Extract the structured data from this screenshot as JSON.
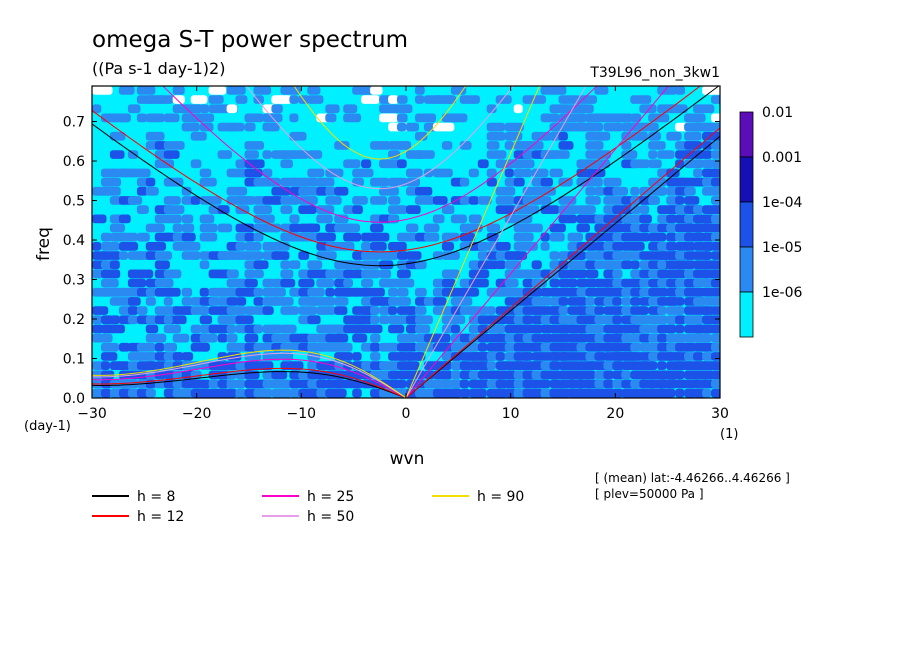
{
  "chart_data": {
    "type": "heatmap",
    "title": "omega S-T power spectrum",
    "subtitle": "((Pa s-1 day-1)2)",
    "run_label": "T39L96_non_3kw1",
    "xlabel": "wvn",
    "ylabel": "freq",
    "x_unit": "(1)",
    "y_unit": "(day-1)",
    "xlim": [
      -30,
      30
    ],
    "ylim": [
      0,
      0.79
    ],
    "xticks": [
      -30,
      -20,
      -10,
      0,
      10,
      20,
      30
    ],
    "yticks": [
      0.0,
      0.1,
      0.2,
      0.3,
      0.4,
      0.5,
      0.6,
      0.7
    ],
    "colorbar": {
      "levels": [
        "0.01",
        "0.001",
        "1e-04",
        "1e-05",
        "1e-06"
      ],
      "colors": [
        "#5a0db8",
        "#1410b4",
        "#1d52e8",
        "#2a8af2",
        "#00f0ff"
      ]
    },
    "field_colors": {
      "white": "#ffffff",
      "cyan": "#00f0ff",
      "light_blue": "#2a8af2",
      "mid_blue": "#1d52e8"
    },
    "legend": [
      {
        "label": "h =  8",
        "color": "#000000"
      },
      {
        "label": "h = 12",
        "color": "#ff0000"
      },
      {
        "label": "h = 25",
        "color": "#ff00c8"
      },
      {
        "label": "h = 50",
        "color": "#e3a0e8"
      },
      {
        "label": "h = 90",
        "color": "#f0e000"
      }
    ],
    "annotation_lines": [
      "[ (mean) lat:-4.46266..4.46266 ]",
      "[ plev=50000 Pa ]"
    ],
    "dispersion_curves": [
      {
        "h": 8,
        "color": "#000000",
        "ig_min_freq": 0.335,
        "kelvin_slope": 0.0221,
        "mrg_peak": 0.058
      },
      {
        "h": 12,
        "color": "#ff0000",
        "ig_min_freq": 0.37,
        "kelvin_slope": 0.0228,
        "mrg_peak": 0.065
      },
      {
        "h": 25,
        "color": "#ff00c8",
        "ig_min_freq": 0.445,
        "kelvin_slope": 0.0315,
        "mrg_peak": 0.085
      },
      {
        "h": 50,
        "color": "#e3a0e8",
        "ig_min_freq": 0.53,
        "kelvin_slope": 0.046,
        "mrg_peak": 0.098
      },
      {
        "h": 90,
        "color": "#f0e000",
        "ig_min_freq": 0.605,
        "kelvin_slope": 0.062,
        "mrg_peak": 0.105
      }
    ]
  }
}
